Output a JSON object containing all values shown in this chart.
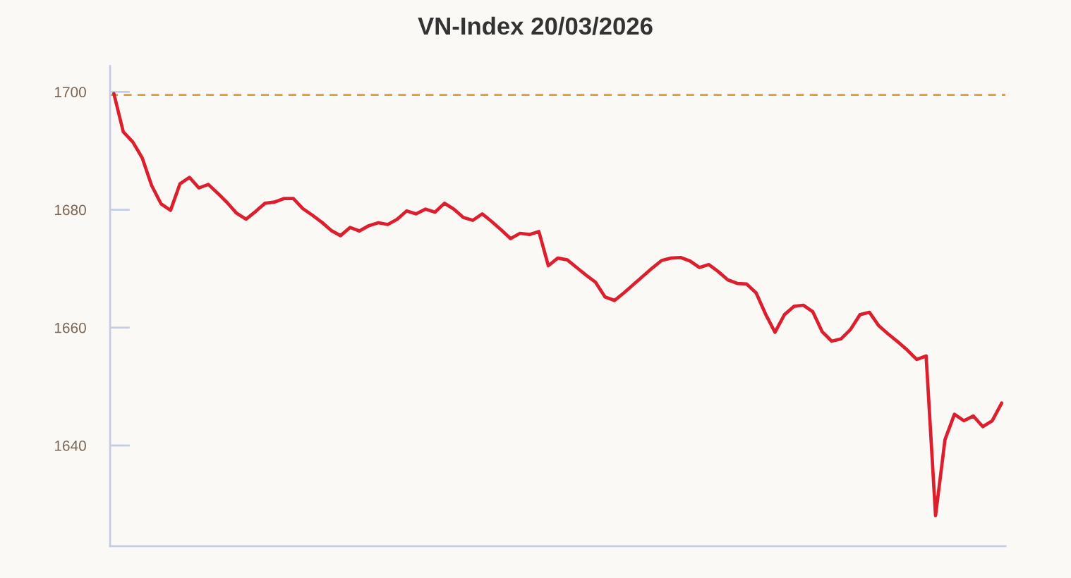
{
  "chart_data": {
    "type": "line",
    "title": "VN-Index 20/03/2026",
    "categories": [
      null,
      null,
      null,
      null,
      null,
      null,
      null,
      null,
      null,
      null,
      null,
      null,
      null,
      null,
      null,
      null,
      null,
      null,
      null,
      null,
      null,
      null,
      null,
      null,
      null,
      null,
      null,
      null,
      null,
      null,
      null,
      null,
      null,
      null,
      null,
      null,
      null,
      null,
      null,
      null,
      null,
      null,
      null,
      null,
      null,
      null,
      null,
      null,
      null,
      null,
      null,
      null,
      null,
      null,
      null,
      null,
      null,
      null,
      null,
      null,
      null,
      null,
      null,
      null,
      null,
      null,
      null,
      null,
      null,
      null,
      null,
      null,
      null,
      null,
      null,
      null,
      null,
      null,
      null,
      null,
      null,
      null,
      null,
      null,
      null,
      null,
      null,
      null,
      null,
      null,
      null,
      null,
      null,
      null,
      null
    ],
    "values": [
      1699.7,
      1693.2,
      1691.5,
      1688.8,
      1684.1,
      1681.0,
      1679.9,
      1684.4,
      1685.5,
      1683.7,
      1684.3,
      1682.8,
      1681.2,
      1679.4,
      1678.4,
      1679.7,
      1681.1,
      1681.3,
      1681.9,
      1681.9,
      1680.2,
      1679.1,
      1677.9,
      1676.5,
      1675.6,
      1677.0,
      1676.4,
      1677.3,
      1677.8,
      1677.5,
      1678.4,
      1679.8,
      1679.3,
      1680.1,
      1679.6,
      1681.1,
      1680.1,
      1678.7,
      1678.2,
      1679.3,
      1678.0,
      1676.6,
      1675.1,
      1676.0,
      1675.8,
      1676.3,
      1670.5,
      1671.8,
      1671.5,
      1670.2,
      1668.9,
      1667.7,
      1665.2,
      1664.6,
      1665.9,
      1667.3,
      1668.7,
      1670.1,
      1671.4,
      1671.8,
      1671.9,
      1671.3,
      1670.2,
      1670.7,
      1669.5,
      1668.1,
      1667.5,
      1667.4,
      1665.9,
      1662.3,
      1659.2,
      1662.2,
      1663.6,
      1663.8,
      1662.7,
      1659.3,
      1657.7,
      1658.1,
      1659.7,
      1662.2,
      1662.6,
      1660.3,
      1658.9,
      1657.6,
      1656.2,
      1654.6,
      1655.2,
      1628.1,
      1641.0,
      1645.3,
      1644.2,
      1645.0,
      1643.2,
      1644.2,
      1647.2
    ],
    "color": "#dd1f2d",
    "ylim": [
      1622.9,
      1704.4
    ],
    "yticks": [
      1640,
      1660,
      1680,
      1700
    ],
    "ref_lines": [
      {
        "axis": "y",
        "value": 1699.5,
        "color": "#e09a40",
        "line_style": "dashed"
      }
    ]
  }
}
